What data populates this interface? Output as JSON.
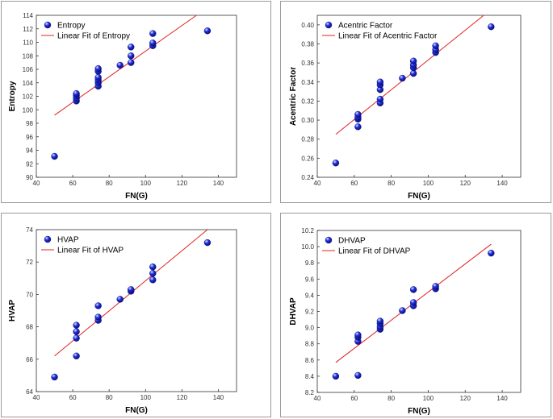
{
  "chart_data": [
    {
      "type": "scatter",
      "xlabel": "FN(G)",
      "ylabel": "Entropy",
      "xlim": [
        40,
        150
      ],
      "ylim": [
        90,
        114
      ],
      "xticks": [
        "40",
        "60",
        "80",
        "100",
        "120",
        "140"
      ],
      "yticks": [
        "90",
        "92",
        "94",
        "96",
        "98",
        "100",
        "102",
        "104",
        "106",
        "108",
        "110",
        "112",
        "114"
      ],
      "legend": [
        "Entropy",
        "Linear Fit of Entropy"
      ],
      "legend_position": "top-left",
      "series": [
        {
          "name": "Entropy",
          "points": [
            [
              50,
              93.1
            ],
            [
              62,
              101.3
            ],
            [
              62,
              101.7
            ],
            [
              62,
              102.1
            ],
            [
              62,
              102.4
            ],
            [
              74,
              103.5
            ],
            [
              74,
              104.0
            ],
            [
              74,
              104.4
            ],
            [
              74,
              104.8
            ],
            [
              74,
              105.7
            ],
            [
              74,
              106.1
            ],
            [
              86,
              106.6
            ],
            [
              92,
              107.0
            ],
            [
              92,
              108.0
            ],
            [
              92,
              109.3
            ],
            [
              104,
              109.5
            ],
            [
              104,
              109.9
            ],
            [
              104,
              111.3
            ],
            [
              134,
              111.7
            ]
          ]
        }
      ],
      "fit_line": {
        "name": "Linear Fit of Entropy",
        "x": [
          50,
          128
        ],
        "y": [
          99.2,
          114
        ]
      }
    },
    {
      "type": "scatter",
      "xlabel": "FN(G)",
      "ylabel": "Acentric Factor",
      "xlim": [
        40,
        150
      ],
      "ylim": [
        0.24,
        0.41
      ],
      "xticks": [
        "40",
        "60",
        "80",
        "100",
        "120",
        "140"
      ],
      "yticks": [
        "0.24",
        "0.26",
        "0.28",
        "0.30",
        "0.32",
        "0.34",
        "0.36",
        "0.38",
        "0.40"
      ],
      "legend": [
        "Acentric Factor",
        "Linear Fit of Acentric Factor"
      ],
      "legend_position": "top-left",
      "series": [
        {
          "name": "Acentric Factor",
          "points": [
            [
              50,
              0.255
            ],
            [
              62,
              0.293
            ],
            [
              62,
              0.301
            ],
            [
              62,
              0.303
            ],
            [
              62,
              0.306
            ],
            [
              74,
              0.318
            ],
            [
              74,
              0.322
            ],
            [
              74,
              0.332
            ],
            [
              74,
              0.337
            ],
            [
              74,
              0.34
            ],
            [
              86,
              0.344
            ],
            [
              92,
              0.349
            ],
            [
              92,
              0.355
            ],
            [
              92,
              0.358
            ],
            [
              92,
              0.362
            ],
            [
              104,
              0.371
            ],
            [
              104,
              0.374
            ],
            [
              104,
              0.378
            ],
            [
              134,
              0.398
            ]
          ]
        }
      ],
      "fit_line": {
        "name": "Linear Fit of Acentric Factor",
        "x": [
          50,
          130
        ],
        "y": [
          0.285,
          0.41
        ]
      }
    },
    {
      "type": "scatter",
      "xlabel": "FN(G)",
      "ylabel": "HVAP",
      "xlim": [
        40,
        150
      ],
      "ylim": [
        64,
        74
      ],
      "xticks": [
        "40",
        "60",
        "80",
        "100",
        "120",
        "140"
      ],
      "yticks": [
        "64",
        "66",
        "68",
        "70",
        "72",
        "74"
      ],
      "legend": [
        "HVAP",
        "Linear Fit of HVAP"
      ],
      "legend_position": "top-left",
      "series": [
        {
          "name": "HVAP",
          "points": [
            [
              50,
              64.9
            ],
            [
              62,
              66.2
            ],
            [
              62,
              67.3
            ],
            [
              62,
              67.7
            ],
            [
              62,
              68.1
            ],
            [
              74,
              68.4
            ],
            [
              74,
              68.6
            ],
            [
              74,
              69.3
            ],
            [
              86,
              69.7
            ],
            [
              92,
              70.2
            ],
            [
              92,
              70.3
            ],
            [
              104,
              70.9
            ],
            [
              104,
              71.3
            ],
            [
              104,
              71.7
            ],
            [
              134,
              73.2
            ]
          ]
        }
      ],
      "fit_line": {
        "name": "Linear Fit of HVAP",
        "x": [
          50,
          134
        ],
        "y": [
          66.2,
          74
        ]
      }
    },
    {
      "type": "scatter",
      "xlabel": "FN(G)",
      "ylabel": "DHVAP",
      "xlim": [
        40,
        150
      ],
      "ylim": [
        8.2,
        10.2
      ],
      "xticks": [
        "40",
        "60",
        "80",
        "100",
        "120",
        "140"
      ],
      "yticks": [
        "8.2",
        "8.4",
        "8.6",
        "8.8",
        "9.0",
        "9.2",
        "9.4",
        "9.6",
        "9.8",
        "10.0",
        "10.2"
      ],
      "legend": [
        "DHVAP",
        "Linear Fit of DHVAP"
      ],
      "legend_position": "top-left",
      "series": [
        {
          "name": "DHVAP",
          "points": [
            [
              50,
              8.4
            ],
            [
              62,
              8.41
            ],
            [
              62,
              8.83
            ],
            [
              62,
              8.88
            ],
            [
              62,
              8.91
            ],
            [
              74,
              8.98
            ],
            [
              74,
              9.01
            ],
            [
              74,
              9.05
            ],
            [
              74,
              9.08
            ],
            [
              86,
              9.21
            ],
            [
              92,
              9.27
            ],
            [
              92,
              9.31
            ],
            [
              92,
              9.47
            ],
            [
              104,
              9.48
            ],
            [
              104,
              9.51
            ],
            [
              134,
              9.92
            ]
          ]
        }
      ],
      "fit_line": {
        "name": "Linear Fit of DHVAP",
        "x": [
          50,
          134
        ],
        "y": [
          8.57,
          10.03
        ]
      }
    }
  ],
  "colors": {
    "marker": "#1f2fe0",
    "marker_dark": "#0a0f7a",
    "marker_light": "#dfe4ff",
    "fit_line": "#e02020",
    "axis": "#333333"
  }
}
